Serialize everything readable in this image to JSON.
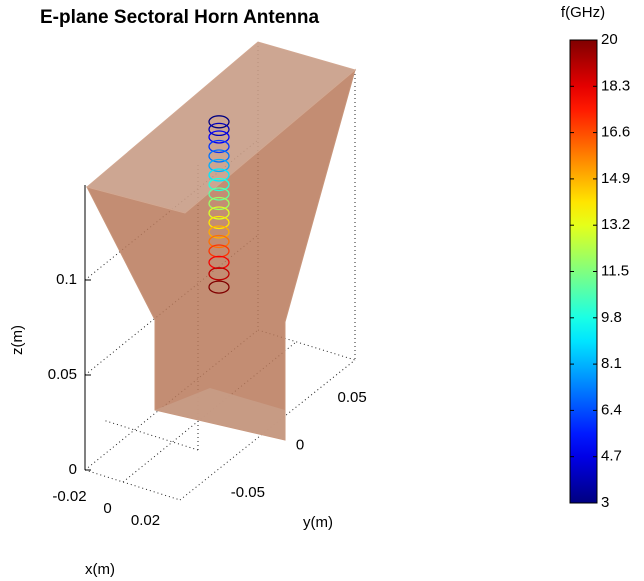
{
  "chart_data": {
    "type": "scatter3d",
    "title": "E-plane Sectoral Horn Antenna",
    "xlabel": "x(m)",
    "ylabel": "y(m)",
    "zlabel": "z(m)",
    "xlim": [
      -0.025,
      0.025
    ],
    "xticks": [
      -0.02,
      0,
      0.02
    ],
    "ylim": [
      -0.07,
      0.07
    ],
    "yticks": [
      -0.05,
      0,
      0.05
    ],
    "zlim": [
      0,
      0.15
    ],
    "zticks": [
      0,
      0.05,
      0.1
    ],
    "colorbar": {
      "label": "f(GHz)",
      "clim": [
        3,
        20
      ],
      "colormap": "jet",
      "ticks": [
        3,
        4.7,
        6.4,
        8.1,
        9.8,
        11.5,
        13.2,
        14.9,
        16.6,
        18.3,
        20
      ]
    },
    "series": [
      {
        "x": [
          0,
          0,
          0,
          0,
          0,
          0,
          0,
          0,
          0,
          0,
          0,
          0,
          0,
          0,
          0,
          0,
          0,
          0
        ],
        "y": [
          0,
          0,
          0,
          0,
          0,
          0,
          0,
          0,
          0,
          0,
          0,
          0,
          0,
          0,
          0,
          0,
          0,
          0
        ],
        "z": [
          0.178,
          0.174,
          0.17,
          0.165,
          0.16,
          0.155,
          0.15,
          0.145,
          0.14,
          0.135,
          0.13,
          0.125,
          0.12,
          0.115,
          0.11,
          0.104,
          0.098,
          0.091
        ],
        "c": [
          3,
          4,
          5,
          6,
          7,
          8,
          9,
          10,
          11,
          12,
          13,
          14,
          15,
          16,
          17,
          18,
          19,
          20
        ]
      }
    ]
  }
}
